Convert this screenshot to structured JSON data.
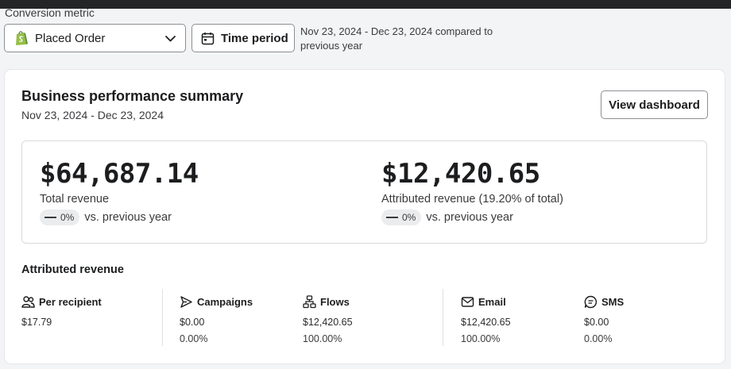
{
  "conversion_metric": {
    "label": "Conversion metric",
    "selected": "Placed Order"
  },
  "time_period": {
    "button_label": "Time period",
    "description": "Nov 23, 2024 - Dec 23, 2024 compared to previous year"
  },
  "summary": {
    "title": "Business performance summary",
    "date_range": "Nov 23, 2024 - Dec 23, 2024",
    "view_dashboard_label": "View dashboard",
    "total_revenue": {
      "value": "$64,687.14",
      "label": "Total revenue",
      "change": "0%",
      "comparison": "vs. previous year"
    },
    "attributed_revenue": {
      "value": "$12,420.65",
      "label": "Attributed revenue (19.20% of total)",
      "change": "0%",
      "comparison": "vs. previous year"
    }
  },
  "attributed_breakdown": {
    "title": "Attributed revenue",
    "columns": [
      {
        "name": "Per recipient",
        "icon": "people-icon",
        "value": "$17.79",
        "percent": ""
      },
      {
        "name": "Campaigns",
        "icon": "send-icon",
        "value": "$0.00",
        "percent": "0.00%"
      },
      {
        "name": "Flows",
        "icon": "flow-icon",
        "value": "$12,420.65",
        "percent": "100.00%"
      },
      {
        "name": "Email",
        "icon": "mail-icon",
        "value": "$12,420.65",
        "percent": "100.00%"
      },
      {
        "name": "SMS",
        "icon": "sms-icon",
        "value": "$0.00",
        "percent": "0.00%"
      }
    ]
  },
  "colors": {
    "shopify_green": "#95bf47",
    "background": "#f3f4f5",
    "text": "#1c1d1f"
  }
}
